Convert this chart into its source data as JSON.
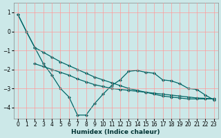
{
  "xlabel": "Humidex (Indice chaleur)",
  "background_color": "#cce8e8",
  "grid_color": "#ff9999",
  "line_color": "#006666",
  "xlim": [
    -0.5,
    23.5
  ],
  "ylim": [
    -4.6,
    1.5
  ],
  "yticks": [
    1,
    0,
    -1,
    -2,
    -3,
    -4
  ],
  "xticks": [
    0,
    1,
    2,
    3,
    4,
    5,
    6,
    7,
    8,
    9,
    10,
    11,
    12,
    13,
    14,
    15,
    16,
    17,
    18,
    19,
    20,
    21,
    22,
    23
  ],
  "line1_x": [
    0,
    1,
    2,
    3,
    4,
    5,
    6,
    7,
    8,
    9,
    10,
    11,
    12,
    13,
    14,
    15,
    16,
    17,
    18,
    19,
    20,
    21,
    22,
    23
  ],
  "line1_y": [
    0.9,
    0.0,
    -0.85,
    -1.1,
    -1.35,
    -1.6,
    -1.8,
    -2.0,
    -2.2,
    -2.4,
    -2.55,
    -2.7,
    -2.85,
    -3.0,
    -3.1,
    -3.2,
    -3.3,
    -3.4,
    -3.45,
    -3.5,
    -3.55,
    -3.55,
    -3.55,
    -3.55
  ],
  "line2_x": [
    2,
    3,
    4,
    5,
    6,
    7,
    8,
    9,
    10,
    11,
    12,
    13,
    14,
    15,
    16,
    17,
    18,
    19,
    20,
    21,
    22,
    23
  ],
  "line2_y": [
    -1.7,
    -1.85,
    -2.0,
    -2.15,
    -2.3,
    -2.5,
    -2.65,
    -2.8,
    -2.9,
    -3.0,
    -3.05,
    -3.1,
    -3.15,
    -3.2,
    -3.25,
    -3.3,
    -3.35,
    -3.4,
    -3.45,
    -3.5,
    -3.52,
    -3.55
  ],
  "line3_x": [
    0,
    1,
    2,
    3,
    4,
    5,
    6,
    7,
    8,
    9,
    10,
    11,
    12,
    13,
    14,
    15,
    16,
    17,
    18,
    19,
    20,
    21,
    22,
    23
  ],
  "line3_y": [
    0.9,
    0.0,
    -0.85,
    -1.7,
    -2.3,
    -3.0,
    -3.45,
    -4.4,
    -4.4,
    -3.8,
    -3.3,
    -2.85,
    -2.55,
    -2.1,
    -2.05,
    -2.15,
    -2.2,
    -2.55,
    -2.6,
    -2.75,
    -3.0,
    -3.05,
    -3.35,
    -3.6
  ]
}
